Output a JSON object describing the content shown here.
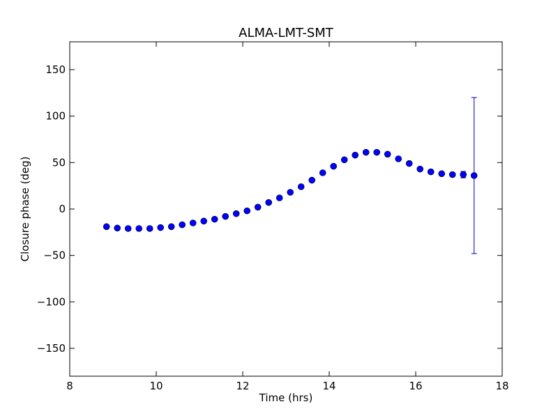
{
  "chart_data": {
    "type": "scatter",
    "title": "ALMA-LMT-SMT",
    "xlabel": "Time (hrs)",
    "ylabel": "Closure phase (deg)",
    "xlim": [
      8,
      18
    ],
    "ylim": [
      -180,
      180
    ],
    "xticks": [
      8,
      10,
      12,
      14,
      16,
      18
    ],
    "yticks": [
      -150,
      -100,
      -50,
      0,
      50,
      100,
      150
    ],
    "xtick_labels": [
      "8",
      "10",
      "12",
      "14",
      "16",
      "18"
    ],
    "ytick_labels": [
      "−150",
      "−100",
      "−50",
      "0",
      "50",
      "100",
      "150"
    ],
    "grid": false,
    "marker_color": "#0000ff",
    "errorbar_color": "#0000bb",
    "points": [
      {
        "x": 8.85,
        "y": -19,
        "err": 0.8
      },
      {
        "x": 9.1,
        "y": -20.5,
        "err": 0.8
      },
      {
        "x": 9.35,
        "y": -21,
        "err": 0.8
      },
      {
        "x": 9.6,
        "y": -21,
        "err": 0.8
      },
      {
        "x": 9.85,
        "y": -21,
        "err": 0.8
      },
      {
        "x": 10.1,
        "y": -20,
        "err": 0.8
      },
      {
        "x": 10.35,
        "y": -19,
        "err": 0.8
      },
      {
        "x": 10.6,
        "y": -17,
        "err": 0.8
      },
      {
        "x": 10.85,
        "y": -15,
        "err": 0.8
      },
      {
        "x": 11.1,
        "y": -13,
        "err": 0.8
      },
      {
        "x": 11.35,
        "y": -11,
        "err": 0.8
      },
      {
        "x": 11.6,
        "y": -8,
        "err": 0.8
      },
      {
        "x": 11.85,
        "y": -5,
        "err": 0.8
      },
      {
        "x": 12.1,
        "y": -2,
        "err": 0.8
      },
      {
        "x": 12.35,
        "y": 2,
        "err": 0.8
      },
      {
        "x": 12.6,
        "y": 7,
        "err": 0.8
      },
      {
        "x": 12.85,
        "y": 12,
        "err": 0.8
      },
      {
        "x": 13.1,
        "y": 18,
        "err": 0.8
      },
      {
        "x": 13.35,
        "y": 24,
        "err": 0.8
      },
      {
        "x": 13.6,
        "y": 31,
        "err": 0.8
      },
      {
        "x": 13.85,
        "y": 39,
        "err": 0.8
      },
      {
        "x": 14.1,
        "y": 46,
        "err": 0.8
      },
      {
        "x": 14.35,
        "y": 53,
        "err": 0.8
      },
      {
        "x": 14.6,
        "y": 58,
        "err": 0.8
      },
      {
        "x": 14.85,
        "y": 61,
        "err": 0.8
      },
      {
        "x": 15.1,
        "y": 61,
        "err": 0.8
      },
      {
        "x": 15.35,
        "y": 59,
        "err": 0.8
      },
      {
        "x": 15.6,
        "y": 54,
        "err": 0.8
      },
      {
        "x": 15.85,
        "y": 49,
        "err": 0.8
      },
      {
        "x": 16.1,
        "y": 43,
        "err": 0.8
      },
      {
        "x": 16.35,
        "y": 40,
        "err": 0.8
      },
      {
        "x": 16.6,
        "y": 38,
        "err": 0.8
      },
      {
        "x": 16.85,
        "y": 37,
        "err": 1.5
      },
      {
        "x": 17.1,
        "y": 37,
        "err": 3.5
      },
      {
        "x": 17.35,
        "y": 36,
        "err": 84
      }
    ]
  }
}
